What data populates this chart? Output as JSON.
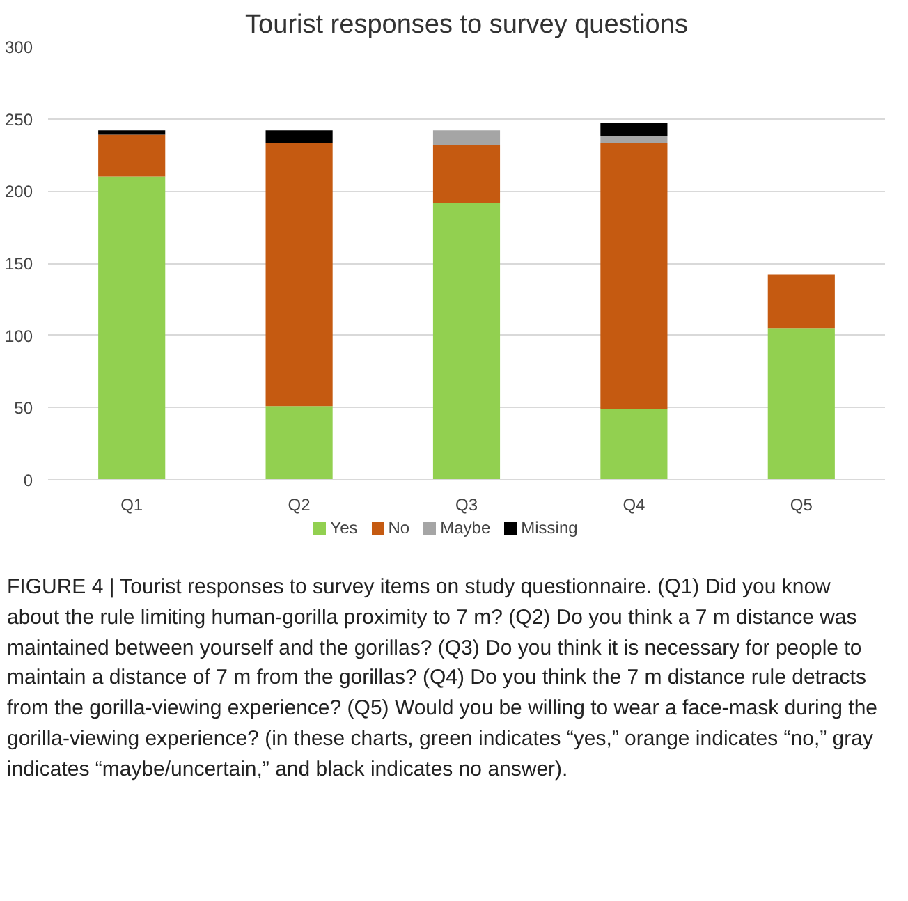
{
  "chart_data": {
    "type": "bar",
    "title": "Tourist responses to survey questions",
    "categories": [
      "Q1",
      "Q2",
      "Q3",
      "Q4",
      "Q5"
    ],
    "stacked": true,
    "series": [
      {
        "name": "Yes",
        "color": "#92d050",
        "values": [
          210,
          51,
          192,
          49,
          105
        ]
      },
      {
        "name": "No",
        "color": "#c55a11",
        "values": [
          29,
          182,
          40,
          184,
          37
        ]
      },
      {
        "name": "Maybe",
        "color": "#a5a5a5",
        "values": [
          0,
          0,
          10,
          5,
          0
        ]
      },
      {
        "name": "Missing",
        "color": "#000000",
        "values": [
          3,
          9,
          0,
          9,
          0
        ]
      }
    ],
    "ylim": [
      0,
      300
    ],
    "yticks": [
      0,
      50,
      100,
      150,
      200,
      250,
      300
    ],
    "grid": "y",
    "legend": "bottom",
    "annotations": [
      "FIGURE 4 | Tourist responses to survey items on study questionnaire. (Q1) Did you know about the rule limiting human-gorilla proximity to 7 m? (Q2) Do you think a 7 m distance was maintained between yourself and the gorillas? (Q3) Do you think it is necessary for people to maintain a distance of 7 m from the gorillas? (Q4) Do you think the 7 m distance rule detracts from the gorilla-viewing experience? (Q5) Would you be willing to wear a face-mask during the gorilla-viewing experience? (in these charts, green indicates “yes,” orange indicates “no,” gray indicates “maybe/uncertain,” and black indicates no answer)."
    ]
  }
}
